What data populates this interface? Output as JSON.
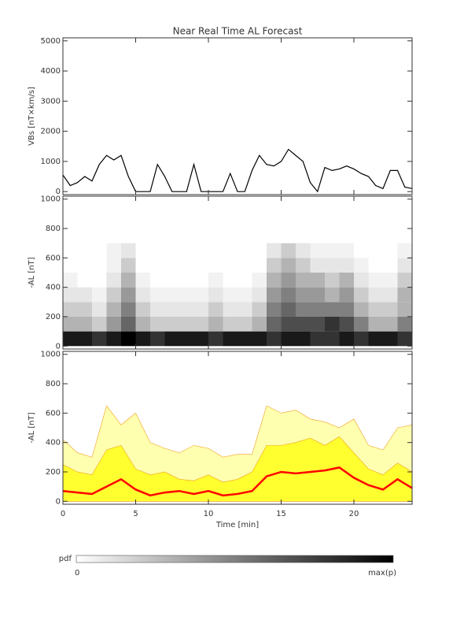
{
  "chart_data": [
    {
      "type": "line",
      "title": "Near Real Time AL Forecast",
      "ylabel": "VBs [nT×km/s]",
      "x": [
        0,
        0.5,
        1,
        1.5,
        2,
        2.5,
        3,
        3.5,
        4,
        4.5,
        5,
        5.5,
        6,
        6.5,
        7,
        7.5,
        8,
        8.5,
        9,
        9.5,
        10,
        10.5,
        11,
        11.5,
        12,
        12.5,
        13,
        13.5,
        14,
        14.5,
        15,
        15.5,
        16,
        16.5,
        17,
        17.5,
        18,
        18.5,
        19,
        19.5,
        20,
        20.5,
        21,
        21.5,
        22,
        22.5,
        23,
        23.5,
        24
      ],
      "values": [
        550,
        200,
        300,
        500,
        350,
        900,
        1200,
        1050,
        1200,
        500,
        0,
        0,
        0,
        900,
        500,
        0,
        0,
        0,
        900,
        0,
        0,
        0,
        0,
        600,
        0,
        0,
        700,
        1200,
        900,
        850,
        1000,
        1400,
        1200,
        1000,
        300,
        0,
        800,
        700,
        750,
        850,
        750,
        600,
        500,
        200,
        100,
        700,
        700,
        150,
        100
      ],
      "color": "#000000",
      "xlim": [
        0,
        24
      ],
      "xticks": [
        0,
        5,
        10,
        15,
        20
      ],
      "ylim": [
        -100,
        5100
      ],
      "yticks": [
        0,
        1000,
        2000,
        3000,
        4000,
        5000
      ]
    },
    {
      "type": "heatmap",
      "ylabel": "-AL [nT]",
      "xbins": [
        0,
        1,
        2,
        3,
        4,
        5,
        6,
        7,
        8,
        9,
        10,
        11,
        12,
        13,
        14,
        15,
        16,
        17,
        18,
        19,
        20,
        21,
        22,
        23,
        24
      ],
      "ybins": [
        0,
        100,
        200,
        300,
        400,
        500,
        600,
        700
      ],
      "values": [
        [
          0.9,
          0.9,
          0.8,
          0.9,
          1,
          0.9,
          0.8,
          0.9,
          0.9,
          0.9,
          0.8,
          0.9,
          0.9,
          0.9,
          0.8,
          0.9,
          0.9,
          0.8,
          0.8,
          0.9,
          0.8,
          0.9,
          0.9,
          0.8
        ],
        [
          0.3,
          0.3,
          0.2,
          0.4,
          0.6,
          0.3,
          0.2,
          0.2,
          0.2,
          0.2,
          0.3,
          0.2,
          0.2,
          0.3,
          0.6,
          0.7,
          0.7,
          0.7,
          0.8,
          0.7,
          0.5,
          0.3,
          0.3,
          0.5
        ],
        [
          0.2,
          0.2,
          0.1,
          0.3,
          0.5,
          0.2,
          0.1,
          0.1,
          0.1,
          0.1,
          0.2,
          0.1,
          0.1,
          0.2,
          0.5,
          0.6,
          0.5,
          0.5,
          0.5,
          0.5,
          0.3,
          0.2,
          0.2,
          0.3
        ],
        [
          0.1,
          0.1,
          0.05,
          0.2,
          0.4,
          0.1,
          0.05,
          0.05,
          0.05,
          0.05,
          0.1,
          0.05,
          0.05,
          0.1,
          0.4,
          0.5,
          0.4,
          0.4,
          0.3,
          0.4,
          0.2,
          0.1,
          0.1,
          0.3
        ],
        [
          0.05,
          0,
          0,
          0.1,
          0.3,
          0.05,
          0,
          0,
          0,
          0,
          0.05,
          0,
          0,
          0.05,
          0.3,
          0.4,
          0.3,
          0.3,
          0.2,
          0.3,
          0.1,
          0.05,
          0.05,
          0.2
        ],
        [
          0,
          0,
          0,
          0.05,
          0.2,
          0,
          0,
          0,
          0,
          0,
          0,
          0,
          0,
          0,
          0.2,
          0.3,
          0.2,
          0.1,
          0.1,
          0.1,
          0.05,
          0,
          0,
          0.1
        ],
        [
          0,
          0,
          0,
          0.05,
          0.1,
          0,
          0,
          0,
          0,
          0,
          0,
          0,
          0,
          0,
          0.1,
          0.2,
          0.1,
          0.05,
          0.05,
          0.05,
          0,
          0,
          0,
          0.05
        ]
      ],
      "xlim": [
        0,
        24
      ],
      "xticks": [
        0,
        5,
        10,
        15,
        20
      ],
      "ylim": [
        -20,
        1020
      ],
      "yticks": [
        0,
        200,
        400,
        600,
        800,
        1000
      ],
      "colorbar": {
        "title": "pdf",
        "labels": [
          "0",
          "max(p)"
        ]
      }
    },
    {
      "type": "band",
      "ylabel": "-AL [nT]",
      "xlabel": "Time [min]",
      "x": [
        0,
        1,
        2,
        3,
        4,
        5,
        6,
        7,
        8,
        9,
        10,
        11,
        12,
        13,
        14,
        15,
        16,
        17,
        18,
        19,
        20,
        21,
        22,
        23,
        24
      ],
      "edge_color": "#f0a020",
      "series": [
        {
          "color": "#ffffb0",
          "style": "area",
          "values": [
            420,
            330,
            300,
            650,
            520,
            600,
            400,
            360,
            330,
            380,
            360,
            300,
            320,
            320,
            650,
            600,
            620,
            560,
            540,
            500,
            560,
            380,
            350,
            500,
            520
          ]
        },
        {
          "color": "#ffff30",
          "style": "area",
          "values": [
            250,
            200,
            180,
            350,
            380,
            220,
            180,
            200,
            150,
            140,
            180,
            130,
            150,
            200,
            380,
            380,
            400,
            430,
            380,
            440,
            330,
            220,
            180,
            260,
            200
          ]
        },
        {
          "color": "#ff0000",
          "style": "line",
          "values": [
            70,
            60,
            50,
            100,
            150,
            80,
            40,
            60,
            70,
            50,
            70,
            40,
            50,
            70,
            170,
            200,
            190,
            200,
            210,
            230,
            160,
            110,
            80,
            150,
            90
          ]
        }
      ],
      "xlim": [
        0,
        24
      ],
      "xticks": [
        0,
        5,
        10,
        15,
        20
      ],
      "ylim": [
        -20,
        1020
      ],
      "yticks": [
        0,
        200,
        400,
        600,
        800,
        1000
      ]
    }
  ]
}
